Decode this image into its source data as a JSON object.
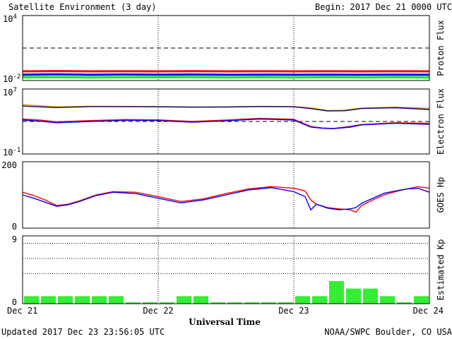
{
  "header": {
    "title": "Satellite Environment (3 day)",
    "begin_label": "Begin:",
    "begin_value": "2017 Dec 21 0000 UTC"
  },
  "footer": {
    "updated": "Updated 2017 Dec 23 23:56:05 UTC",
    "credit": "NOAA/SWPC Boulder, CO USA"
  },
  "xaxis": {
    "label": "Universal Time",
    "ticks": [
      "Dec 21",
      "Dec 22",
      "Dec 23",
      "Dec 24"
    ],
    "range_hours": [
      0,
      72
    ]
  },
  "chart_data": [
    {
      "type": "line",
      "panel": "proton",
      "ylabel": "Proton Flux",
      "ytick_labels": {
        "top": {
          "base": "10",
          "exp": "4"
        },
        "bottom": {
          "base": "10",
          "exp": "-2"
        }
      },
      "yscale": "log",
      "ylim": [
        0.01,
        10000
      ],
      "threshold": 10,
      "grid_dotted_x": true,
      "series": [
        {
          "color": "#ff0000",
          "x": [
            0,
            6,
            12,
            18,
            24,
            30,
            36,
            42,
            48,
            54,
            60,
            66,
            72
          ],
          "y": [
            0.07,
            0.075,
            0.07,
            0.072,
            0.07,
            0.073,
            0.07,
            0.072,
            0.07,
            0.071,
            0.07,
            0.072,
            0.07
          ]
        },
        {
          "color": "#0000ff",
          "x": [
            0,
            6,
            12,
            18,
            24,
            30,
            36,
            42,
            48,
            54,
            60,
            66,
            72
          ],
          "y": [
            0.035,
            0.037,
            0.034,
            0.036,
            0.035,
            0.036,
            0.034,
            0.035,
            0.034,
            0.035,
            0.034,
            0.035,
            0.034
          ]
        },
        {
          "color": "#00ee00",
          "x": [
            0,
            6,
            12,
            18,
            24,
            30,
            36,
            42,
            48,
            54,
            60,
            66,
            72
          ],
          "y": [
            0.02,
            0.021,
            0.019,
            0.02,
            0.02,
            0.021,
            0.019,
            0.02,
            0.019,
            0.02,
            0.019,
            0.02,
            0.019
          ]
        }
      ]
    },
    {
      "type": "line",
      "panel": "electron",
      "ylabel": "Electron Flux",
      "ytick_labels": {
        "top": {
          "base": "10",
          "exp": "7"
        },
        "bottom": {
          "base": "10",
          "exp": "-1"
        }
      },
      "yscale": "log",
      "ylim": [
        0.1,
        10000000
      ],
      "threshold": 1000,
      "grid_dotted_x": true,
      "series": [
        {
          "color": "#ff9900",
          "x": [
            0,
            6,
            12,
            18,
            24,
            30,
            36,
            42,
            48,
            51,
            54,
            57,
            60,
            66,
            72
          ],
          "y": [
            120000,
            65000,
            75000,
            72000,
            70000,
            62000,
            65000,
            73000,
            70000,
            50000,
            22000,
            25000,
            45000,
            58000,
            42000
          ]
        },
        {
          "color": "#000080",
          "x": [
            0,
            6,
            12,
            18,
            24,
            30,
            36,
            42,
            48,
            51,
            54,
            57,
            60,
            66,
            72
          ],
          "y": [
            80000,
            52000,
            68000,
            66000,
            64000,
            58000,
            60000,
            70000,
            65000,
            38000,
            20000,
            21000,
            40000,
            50000,
            30000
          ]
        },
        {
          "color": "#ff0000",
          "x": [
            0,
            3,
            6,
            12,
            18,
            24,
            30,
            36,
            42,
            48,
            51,
            53,
            55,
            58,
            60,
            66,
            72
          ],
          "y": [
            2000,
            1500,
            900,
            1300,
            1700,
            1600,
            1000,
            1500,
            2400,
            1900,
            250,
            160,
            140,
            250,
            420,
            700,
            600
          ]
        },
        {
          "color": "#0000ff",
          "x": [
            0,
            3,
            6,
            12,
            18,
            24,
            30,
            36,
            42,
            48,
            51,
            53,
            55,
            58,
            60,
            66,
            72
          ],
          "y": [
            1500,
            1100,
            700,
            1000,
            1400,
            1300,
            800,
            1200,
            2000,
            1500,
            200,
            150,
            130,
            200,
            380,
            600,
            450
          ]
        }
      ]
    },
    {
      "type": "line",
      "panel": "goes_hp",
      "ylabel": "GOES Hp",
      "ytick_labels": {
        "top": "200",
        "bottom": "0"
      },
      "yscale": "linear",
      "ylim": [
        0,
        200
      ],
      "grid_dotted_x": true,
      "series": [
        {
          "color": "#ff0000",
          "x": [
            0,
            2,
            4,
            6,
            8,
            10,
            13,
            16,
            20,
            24,
            28,
            32,
            36,
            40,
            44,
            48,
            50,
            51,
            52,
            54,
            56,
            58,
            59,
            60,
            62,
            64,
            66,
            68,
            70,
            72
          ],
          "y": [
            108,
            98,
            85,
            68,
            72,
            82,
            100,
            110,
            108,
            95,
            80,
            88,
            104,
            118,
            125,
            120,
            112,
            85,
            72,
            62,
            58,
            55,
            48,
            68,
            85,
            100,
            110,
            118,
            125,
            120
          ]
        },
        {
          "color": "#0000ff",
          "x": [
            0,
            2,
            4,
            6,
            8,
            10,
            13,
            16,
            20,
            24,
            28,
            32,
            36,
            40,
            44,
            48,
            50,
            51,
            52,
            54,
            56,
            58,
            59,
            60,
            62,
            64,
            66,
            68,
            70,
            72
          ],
          "y": [
            100,
            90,
            78,
            66,
            70,
            80,
            98,
            108,
            104,
            90,
            76,
            85,
            100,
            115,
            122,
            110,
            95,
            55,
            72,
            60,
            55,
            58,
            62,
            75,
            90,
            105,
            112,
            118,
            120,
            108
          ]
        }
      ]
    },
    {
      "type": "bar",
      "panel": "kp",
      "ylabel": "Estimated Kp",
      "ytick_labels": {
        "top": "9",
        "bottom": "0"
      },
      "ylim": [
        0,
        9
      ],
      "grid_dotted_y": [
        4,
        6,
        8
      ],
      "bar_color": "#33ee33",
      "bin_hours": 3,
      "values": [
        1,
        1,
        1,
        1,
        1,
        1,
        0,
        0,
        0,
        1,
        1,
        0,
        0,
        0,
        0,
        0,
        1,
        1,
        3,
        2,
        2,
        1,
        0,
        1
      ]
    }
  ]
}
